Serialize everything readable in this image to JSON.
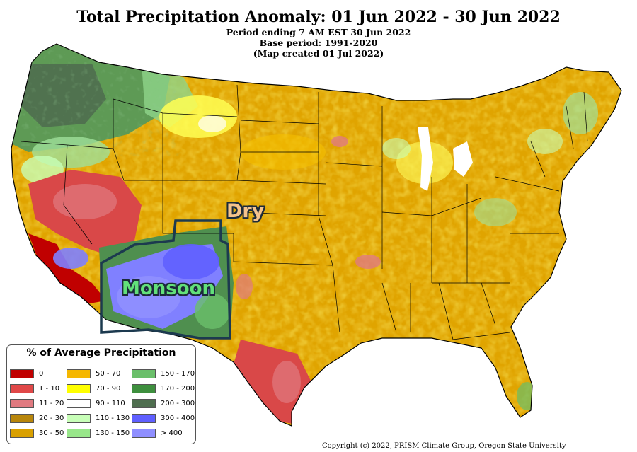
{
  "header": {
    "title": "Total Precipitation Anomaly: 01 Jun 2022 - 30 Jun 2022",
    "period": "Period ending 7 AM EST 30 Jun 2022",
    "base_period": "Base period: 1991-2020",
    "created": "(Map created 01 Jul 2022)"
  },
  "annotations": {
    "dry": "Dry",
    "monsoon": "Monsoon"
  },
  "legend": {
    "title": "% of Average Precipitation",
    "items": [
      {
        "label": "0",
        "color": "#c00000"
      },
      {
        "label": "1 - 10",
        "color": "#e04848"
      },
      {
        "label": "11 - 20",
        "color": "#e07a80"
      },
      {
        "label": "20 - 30",
        "color": "#b8860b"
      },
      {
        "label": "30 - 50",
        "color": "#d9a000"
      },
      {
        "label": "50 - 70",
        "color": "#f5b700"
      },
      {
        "label": "70 - 90",
        "color": "#ffff00"
      },
      {
        "label": "90 - 110",
        "color": "#ffffff"
      },
      {
        "label": "110 - 130",
        "color": "#c8ffb8"
      },
      {
        "label": "130 - 150",
        "color": "#98e68a"
      },
      {
        "label": "150 - 170",
        "color": "#6abf6a"
      },
      {
        "label": "170 - 200",
        "color": "#3e8f3e"
      },
      {
        "label": "200 - 300",
        "color": "#4f6e4f"
      },
      {
        "label": "300 - 400",
        "color": "#5f5fff"
      },
      {
        "label": "> 400",
        "color": "#8f8fff"
      }
    ]
  },
  "copyright": "Copyright (c) 2022, PRISM Climate Group, Oregon State University"
}
